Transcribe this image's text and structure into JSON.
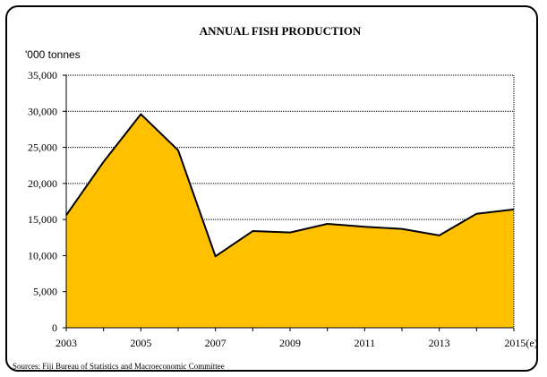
{
  "chart_data": {
    "type": "area",
    "title": "ANNUAL FISH PRODUCTION",
    "ylabel": "'000 tonnes",
    "xlabel": "",
    "x": [
      2003,
      2004,
      2005,
      2006,
      2007,
      2008,
      2009,
      2010,
      2011,
      2012,
      2013,
      2014,
      2015
    ],
    "series": [
      {
        "values": [
          15600,
          23000,
          29600,
          24600,
          9900,
          13400,
          13200,
          14400,
          14000,
          13700,
          12800,
          15800,
          16400
        ]
      }
    ],
    "x_tick_labels": [
      "2003",
      "2005",
      "2007",
      "2009",
      "2011",
      "2013",
      "2015(e)"
    ],
    "x_tick_values": [
      2003,
      2005,
      2007,
      2009,
      2011,
      2013,
      2015
    ],
    "y_tick_labels": [
      "0",
      "5,000",
      "10,000",
      "15,000",
      "20,000",
      "25,000",
      "30,000",
      "35,000"
    ],
    "y_tick_values": [
      0,
      5000,
      10000,
      15000,
      20000,
      25000,
      30000,
      35000
    ],
    "ylim": [
      0,
      35000
    ],
    "xlim": [
      2003,
      2015
    ],
    "grid": true,
    "colors": {
      "fill": "#FFC000",
      "line": "#000000",
      "grid": "#000000"
    }
  },
  "source": "Sources:  Fiji Bureau of Statistics and Macroeconomic Committee"
}
